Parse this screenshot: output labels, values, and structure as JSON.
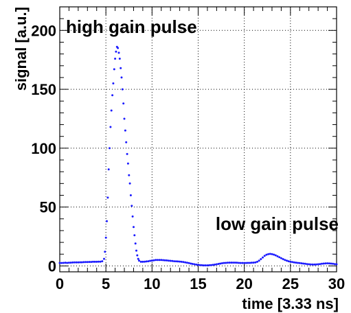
{
  "chart_data": {
    "type": "scatter",
    "xlabel": "time [3.33 ns]",
    "ylabel": "signal [a.u.]",
    "xlim": [
      0,
      30
    ],
    "ylim": [
      -5,
      220
    ],
    "xticks": [
      0,
      5,
      10,
      15,
      20,
      25,
      30
    ],
    "yticks": [
      0,
      50,
      100,
      150,
      200
    ],
    "grid": true,
    "annotations": [
      {
        "text": "high gain pulse"
      },
      {
        "text": "low gain pulse"
      }
    ],
    "marker_color": "#1a1aff",
    "series": [
      {
        "points": [
          [
            0.0,
            2.5
          ],
          [
            0.2,
            2.5
          ],
          [
            0.4,
            2.6
          ],
          [
            0.6,
            2.7
          ],
          [
            0.8,
            2.6
          ],
          [
            1.0,
            2.7
          ],
          [
            1.2,
            2.8
          ],
          [
            1.4,
            2.9
          ],
          [
            1.6,
            3.0
          ],
          [
            1.8,
            3.0
          ],
          [
            2.0,
            3.0
          ],
          [
            2.2,
            3.1
          ],
          [
            2.4,
            3.1
          ],
          [
            2.6,
            3.2
          ],
          [
            2.8,
            3.3
          ],
          [
            3.0,
            3.3
          ],
          [
            3.2,
            3.4
          ],
          [
            3.4,
            3.4
          ],
          [
            3.6,
            3.5
          ],
          [
            3.8,
            3.5
          ],
          [
            4.0,
            3.5
          ],
          [
            4.2,
            3.6
          ],
          [
            4.4,
            3.6
          ],
          [
            4.6,
            4.0
          ],
          [
            4.8,
            6.0
          ],
          [
            4.9,
            12.0
          ],
          [
            5.0,
            24.0
          ],
          [
            5.1,
            38.0
          ],
          [
            5.2,
            58.0
          ],
          [
            5.3,
            82.0
          ],
          [
            5.4,
            100.0
          ],
          [
            5.5,
            118.0
          ],
          [
            5.6,
            132.0
          ],
          [
            5.7,
            145.0
          ],
          [
            5.8,
            155.0
          ],
          [
            5.9,
            167.0
          ],
          [
            6.0,
            176.0
          ],
          [
            6.1,
            182.0
          ],
          [
            6.2,
            186.0
          ],
          [
            6.3,
            185.0
          ],
          [
            6.4,
            181.0
          ],
          [
            6.5,
            176.0
          ],
          [
            6.6,
            168.0
          ],
          [
            6.7,
            160.0
          ],
          [
            6.8,
            150.0
          ],
          [
            6.9,
            138.0
          ],
          [
            7.0,
            125.0
          ],
          [
            7.1,
            115.0
          ],
          [
            7.2,
            105.0
          ],
          [
            7.3,
            95.0
          ],
          [
            7.4,
            87.0
          ],
          [
            7.5,
            77.0
          ],
          [
            7.6,
            70.0
          ],
          [
            7.7,
            60.0
          ],
          [
            7.8,
            51.0
          ],
          [
            7.9,
            42.0
          ],
          [
            8.0,
            33.0
          ],
          [
            8.1,
            26.0
          ],
          [
            8.2,
            19.0
          ],
          [
            8.3,
            13.0
          ],
          [
            8.4,
            9.0
          ],
          [
            8.5,
            6.0
          ],
          [
            8.6,
            4.5
          ],
          [
            8.8,
            3.5
          ],
          [
            9.0,
            3.5
          ],
          [
            9.2,
            3.6
          ],
          [
            9.4,
            3.8
          ],
          [
            9.6,
            4.0
          ],
          [
            9.8,
            4.3
          ],
          [
            10.0,
            4.5
          ],
          [
            10.2,
            4.8
          ],
          [
            10.4,
            5.0
          ],
          [
            10.6,
            5.0
          ],
          [
            10.8,
            5.0
          ],
          [
            11.0,
            5.0
          ],
          [
            11.2,
            4.9
          ],
          [
            11.4,
            4.8
          ],
          [
            11.6,
            4.7
          ],
          [
            11.8,
            4.5
          ],
          [
            12.0,
            4.3
          ],
          [
            12.2,
            4.2
          ],
          [
            12.4,
            4.0
          ],
          [
            12.6,
            3.9
          ],
          [
            12.8,
            3.8
          ],
          [
            13.0,
            3.7
          ],
          [
            13.2,
            3.5
          ],
          [
            13.4,
            3.3
          ],
          [
            13.6,
            3.0
          ],
          [
            13.8,
            2.7
          ],
          [
            14.0,
            2.4
          ],
          [
            14.2,
            2.0
          ],
          [
            14.4,
            1.7
          ],
          [
            14.6,
            1.4
          ],
          [
            14.8,
            1.1
          ],
          [
            15.0,
            0.9
          ],
          [
            15.2,
            0.7
          ],
          [
            15.4,
            0.6
          ],
          [
            15.6,
            0.5
          ],
          [
            15.8,
            0.5
          ],
          [
            16.0,
            0.5
          ],
          [
            16.2,
            0.6
          ],
          [
            16.4,
            0.7
          ],
          [
            16.6,
            0.9
          ],
          [
            16.8,
            1.1
          ],
          [
            17.0,
            1.4
          ],
          [
            17.2,
            1.7
          ],
          [
            17.4,
            2.0
          ],
          [
            17.6,
            2.3
          ],
          [
            17.8,
            2.5
          ],
          [
            18.0,
            2.6
          ],
          [
            18.2,
            2.7
          ],
          [
            18.4,
            2.8
          ],
          [
            18.6,
            2.8
          ],
          [
            18.8,
            2.8
          ],
          [
            19.0,
            2.8
          ],
          [
            19.2,
            2.7
          ],
          [
            19.4,
            2.6
          ],
          [
            19.6,
            2.5
          ],
          [
            19.8,
            2.5
          ],
          [
            20.0,
            2.5
          ],
          [
            20.2,
            2.5
          ],
          [
            20.4,
            2.6
          ],
          [
            20.6,
            2.6
          ],
          [
            20.8,
            2.7
          ],
          [
            21.0,
            2.8
          ],
          [
            21.2,
            3.0
          ],
          [
            21.4,
            3.5
          ],
          [
            21.6,
            4.5
          ],
          [
            21.8,
            5.8
          ],
          [
            22.0,
            7.2
          ],
          [
            22.2,
            8.5
          ],
          [
            22.4,
            9.5
          ],
          [
            22.6,
            10.0
          ],
          [
            22.8,
            10.2
          ],
          [
            23.0,
            10.0
          ],
          [
            23.2,
            9.6
          ],
          [
            23.4,
            9.0
          ],
          [
            23.6,
            8.2
          ],
          [
            23.8,
            7.4
          ],
          [
            24.0,
            6.6
          ],
          [
            24.2,
            5.8
          ],
          [
            24.4,
            5.1
          ],
          [
            24.6,
            4.5
          ],
          [
            24.8,
            4.0
          ],
          [
            25.0,
            3.6
          ],
          [
            25.2,
            3.3
          ],
          [
            25.4,
            3.0
          ],
          [
            25.6,
            2.8
          ],
          [
            25.8,
            2.6
          ],
          [
            26.0,
            2.4
          ],
          [
            26.2,
            2.2
          ],
          [
            26.4,
            2.0
          ],
          [
            26.6,
            1.8
          ],
          [
            26.8,
            1.6
          ],
          [
            27.0,
            1.4
          ],
          [
            27.2,
            1.3
          ],
          [
            27.4,
            1.2
          ],
          [
            27.6,
            1.2
          ],
          [
            27.8,
            1.3
          ],
          [
            28.0,
            1.4
          ],
          [
            28.2,
            1.6
          ],
          [
            28.4,
            1.8
          ],
          [
            28.6,
            2.0
          ],
          [
            28.8,
            2.1
          ],
          [
            29.0,
            2.2
          ],
          [
            29.2,
            2.1
          ],
          [
            29.4,
            2.0
          ],
          [
            29.6,
            1.8
          ],
          [
            29.8,
            1.6
          ],
          [
            30.0,
            1.4
          ]
        ]
      }
    ]
  }
}
